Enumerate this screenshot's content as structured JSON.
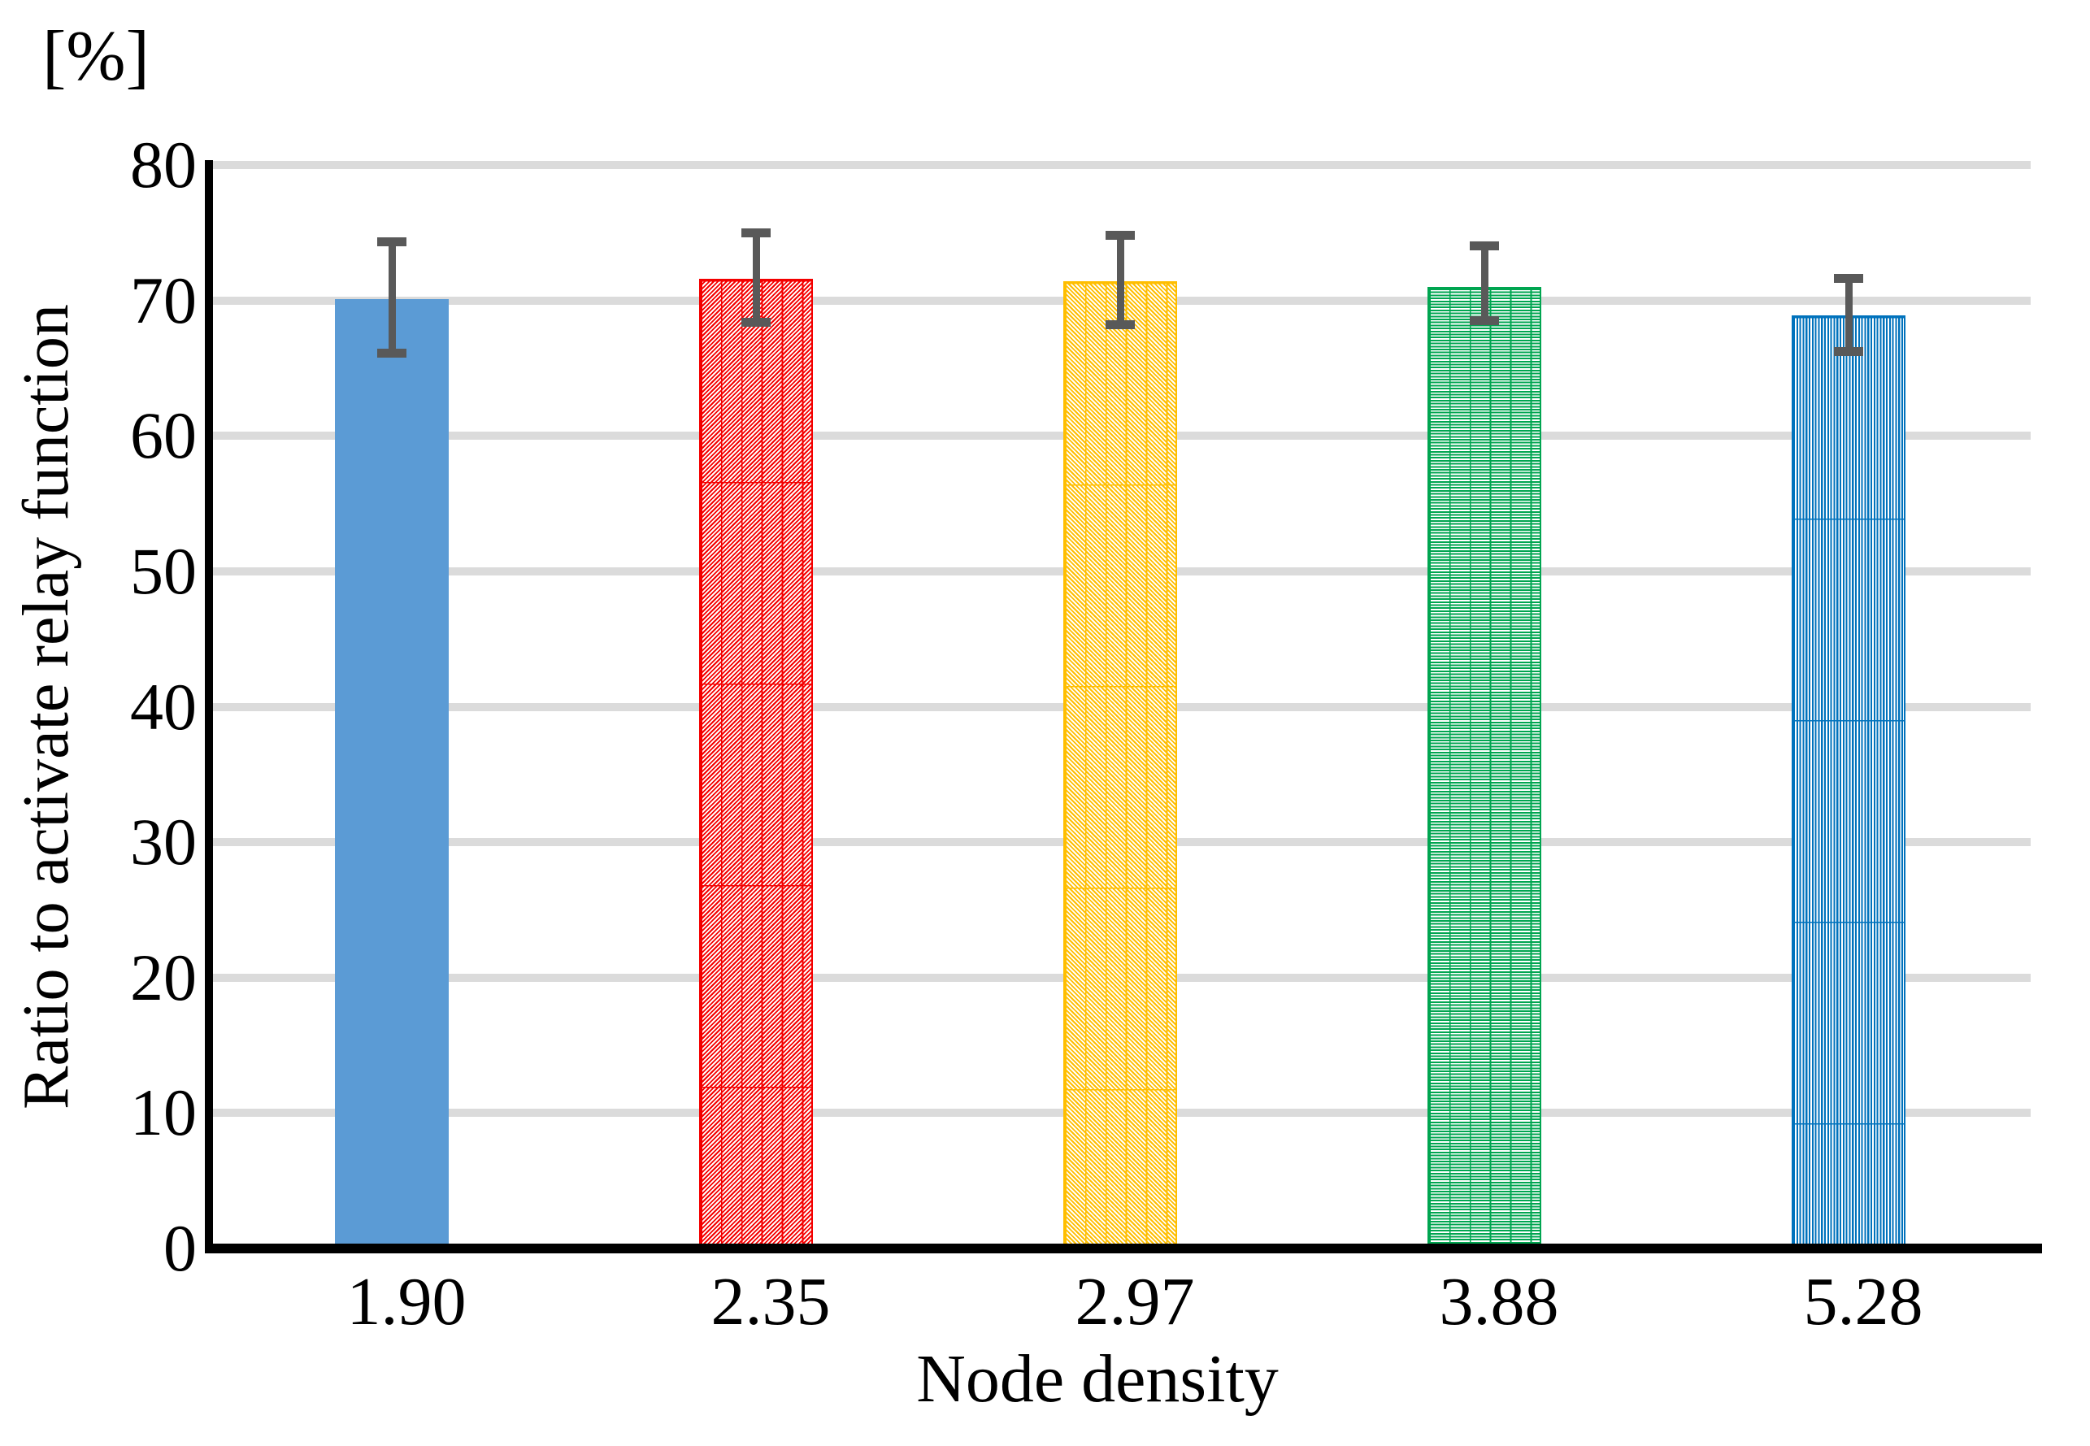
{
  "figure": {
    "unit_label": "[%]"
  },
  "chart_data": {
    "type": "bar",
    "categories": [
      "1.90",
      "2.35",
      "2.97",
      "3.88",
      "5.28"
    ],
    "values": [
      70.1,
      71.6,
      71.4,
      71.0,
      68.9
    ],
    "error_high": [
      74.3,
      75.0,
      74.8,
      74.0,
      71.6
    ],
    "error_low": [
      66.1,
      68.4,
      68.2,
      68.5,
      66.2
    ],
    "xlabel": "Node density",
    "ylabel": "Ratio to activate relay function",
    "unit": "[%]",
    "ylim": [
      0,
      80
    ],
    "yticks": [
      0,
      10,
      20,
      30,
      40,
      50,
      60,
      70,
      80
    ],
    "grid": "horizontal",
    "legend": "none",
    "bar_styles": [
      {
        "fill": "#5b9bd5",
        "hatch": "solid"
      },
      {
        "fill": "#f40000",
        "hatch": "diagonal-up"
      },
      {
        "fill": "#ffbe00",
        "hatch": "diagonal-down"
      },
      {
        "fill": "#00a550",
        "hatch": "horizontal"
      },
      {
        "fill": "#0072bc",
        "hatch": "vertical"
      }
    ],
    "error_bar_color": "#595959",
    "gridline_color": "#dbdbdb",
    "axis_color": "#000000"
  }
}
